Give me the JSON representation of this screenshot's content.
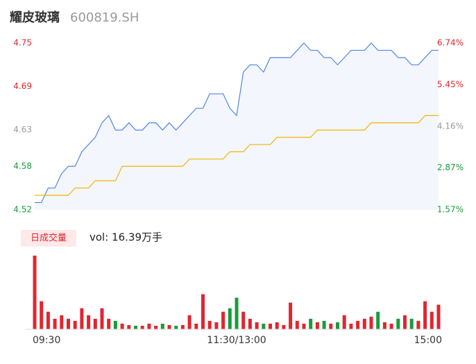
{
  "header": {
    "title": "耀皮玻璃",
    "code": "600819.SH"
  },
  "chart_data": [
    {
      "type": "line",
      "categories": [
        "09:30",
        null,
        null,
        null,
        null,
        null,
        null,
        null,
        null,
        null,
        null,
        null,
        null,
        null,
        null,
        null,
        null,
        null,
        null,
        null,
        null,
        null,
        null,
        null,
        null,
        null,
        null,
        null,
        null,
        null,
        "11:30/13:00",
        null,
        null,
        null,
        null,
        null,
        null,
        null,
        null,
        null,
        null,
        null,
        null,
        null,
        null,
        null,
        null,
        null,
        null,
        null,
        null,
        null,
        null,
        null,
        null,
        null,
        null,
        null,
        null,
        null,
        "15:00"
      ],
      "series": [
        {
          "color": "#4f86e8",
          "fill": "#f3f6fd",
          "values": [
            4.53,
            4.53,
            4.55,
            4.55,
            4.57,
            4.58,
            4.58,
            4.6,
            4.61,
            4.62,
            4.64,
            4.65,
            4.63,
            4.63,
            4.64,
            4.63,
            4.63,
            4.64,
            4.64,
            4.63,
            4.64,
            4.63,
            4.64,
            4.65,
            4.66,
            4.66,
            4.68,
            4.68,
            4.68,
            4.66,
            4.65,
            4.71,
            4.72,
            4.72,
            4.71,
            4.73,
            4.73,
            4.73,
            4.73,
            4.74,
            4.75,
            4.74,
            4.74,
            4.73,
            4.73,
            4.72,
            4.73,
            4.74,
            4.74,
            4.74,
            4.75,
            4.74,
            4.74,
            4.74,
            4.73,
            4.73,
            4.72,
            4.72,
            4.73,
            4.74,
            4.74
          ]
        },
        {
          "color": "#f5b400",
          "values": [
            4.54,
            4.54,
            4.54,
            4.54,
            4.54,
            4.54,
            4.55,
            4.55,
            4.55,
            4.56,
            4.56,
            4.56,
            4.56,
            4.58,
            4.58,
            4.58,
            4.58,
            4.58,
            4.58,
            4.58,
            4.58,
            4.58,
            4.58,
            4.59,
            4.59,
            4.59,
            4.59,
            4.59,
            4.59,
            4.6,
            4.6,
            4.6,
            4.61,
            4.61,
            4.61,
            4.61,
            4.62,
            4.62,
            4.62,
            4.62,
            4.62,
            4.62,
            4.63,
            4.63,
            4.63,
            4.63,
            4.63,
            4.63,
            4.63,
            4.63,
            4.64,
            4.64,
            4.64,
            4.64,
            4.64,
            4.64,
            4.64,
            4.64,
            4.65,
            4.65,
            4.65
          ]
        }
      ],
      "ylim": [
        4.52,
        4.75
      ],
      "yticks": [
        4.75,
        4.69,
        4.63,
        4.58,
        4.52
      ],
      "y2lim": [
        1.57,
        6.74
      ],
      "y2ticks": [
        {
          "value": 6.74,
          "label": "6.74%"
        },
        {
          "value": 5.45,
          "label": "5.45%"
        },
        {
          "value": 4.16,
          "label": "4.16%"
        },
        {
          "value": 2.87,
          "label": "2.87%"
        },
        {
          "value": 1.57,
          "label": "1.57%"
        }
      ],
      "up_color": "#e0262f",
      "flat_color": "#999999",
      "down_color": "#1a9c3a"
    },
    {
      "type": "bar",
      "title": "日成交量",
      "subtitle": "vol: 16.39万手",
      "values": [
        105,
        40,
        25,
        15,
        20,
        15,
        12,
        30,
        20,
        15,
        30,
        15,
        12,
        8,
        6,
        5,
        5,
        8,
        5,
        8,
        6,
        5,
        6,
        20,
        8,
        50,
        12,
        10,
        25,
        30,
        45,
        25,
        15,
        10,
        8,
        8,
        10,
        6,
        38,
        12,
        8,
        15,
        10,
        12,
        8,
        10,
        20,
        8,
        12,
        15,
        18,
        25,
        10,
        8,
        15,
        20,
        15,
        12,
        40,
        25,
        35
      ],
      "up_color": "#e0262f",
      "down_color": "#1a9c3a"
    }
  ]
}
